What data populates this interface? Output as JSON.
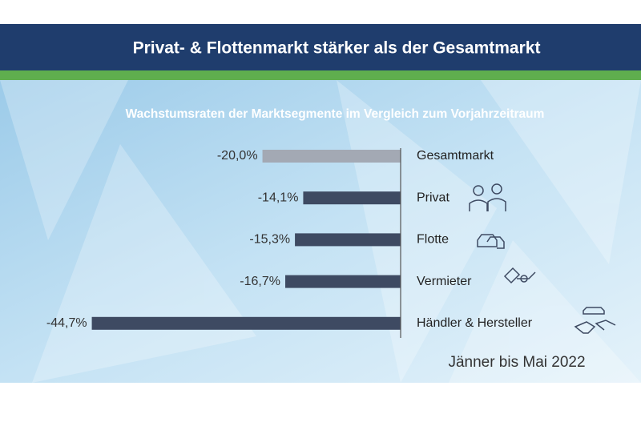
{
  "chart_data": {
    "type": "bar",
    "orientation": "horizontal",
    "title": "Privat- & Flottenmarkt stärker als der Gesamtmarkt",
    "subtitle": "Wachstumsraten der Marktsegmente im Vergleich zum Vorjahrzeitraum",
    "categories": [
      "Gesamtmarkt",
      "Privat",
      "Flotte",
      "Vermieter",
      "Händler & Hersteller"
    ],
    "values": [
      -20.0,
      -14.1,
      -15.3,
      -16.7,
      -44.7
    ],
    "value_labels": [
      "-20,0%",
      "-14,1%",
      "-15,3%",
      "-16,7%",
      "-44,7%"
    ],
    "colors": [
      "#a3a9b4",
      "#3e4a62",
      "#3e4a62",
      "#3e4a62",
      "#3e4a62"
    ],
    "xlim": [
      -45,
      0
    ],
    "annotation": "Jänner bis Mai 2022"
  }
}
